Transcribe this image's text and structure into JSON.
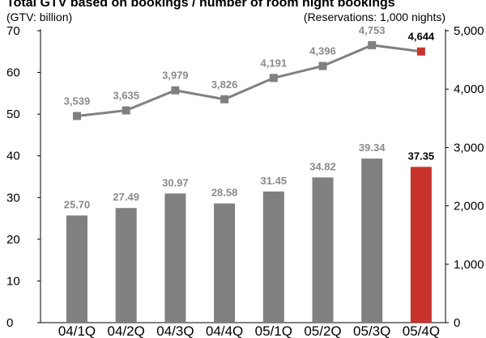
{
  "chart_data": {
    "type": "bar+line",
    "title": "Total GTV based on bookings / number of room night bookings",
    "left_axis_unit": "(GTV: billion)",
    "right_axis_unit": "(Reservations: 1,000 nights)",
    "categories": [
      "04/1Q",
      "04/2Q",
      "04/3Q",
      "04/4Q",
      "05/1Q",
      "05/2Q",
      "05/3Q",
      "05/4Q"
    ],
    "left_ylim": [
      0,
      70
    ],
    "left_ticks": [
      "0",
      "10",
      "20",
      "30",
      "40",
      "50",
      "60",
      "70"
    ],
    "right_ylim": [
      0,
      5000
    ],
    "right_ticks": [
      "0",
      "1,000",
      "2,000",
      "3,000",
      "4,000",
      "5,000"
    ],
    "series": [
      {
        "type": "bar",
        "axis": "left",
        "values": [
          25.7,
          27.49,
          30.97,
          28.58,
          31.45,
          34.82,
          39.34,
          37.35
        ],
        "labels": [
          "25.70",
          "27.49",
          "30.97",
          "28.58",
          "31.45",
          "34.82",
          "39.34",
          "37.35"
        ]
      },
      {
        "type": "line",
        "axis": "right",
        "values": [
          3539,
          3635,
          3979,
          3826,
          4191,
          4396,
          4753,
          4644
        ],
        "labels": [
          "3,539",
          "3,635",
          "3,979",
          "3,826",
          "4,191",
          "4,396",
          "4,753",
          "4,644"
        ]
      }
    ],
    "highlight_index": 7,
    "colors": {
      "bar": "#808080",
      "line": "#808080",
      "highlight": "#c8342c",
      "axis": "#000000"
    },
    "grid": false
  }
}
